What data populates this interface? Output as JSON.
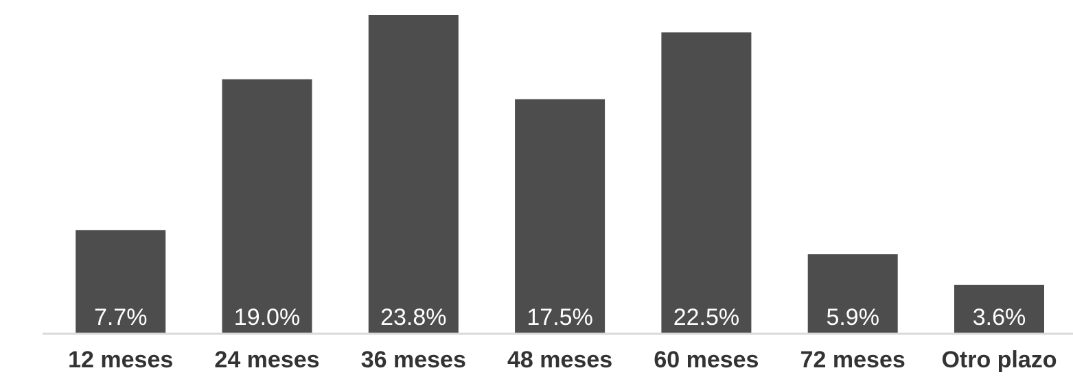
{
  "chart_data": {
    "type": "bar",
    "categories": [
      "12 meses",
      "24 meses",
      "36 meses",
      "48 meses",
      "60 meses",
      "72 meses",
      "Otro plazo"
    ],
    "values": [
      7.7,
      19.0,
      23.8,
      17.5,
      22.5,
      5.9,
      3.6
    ],
    "data_labels": [
      "7.7%",
      "19.0%",
      "23.8%",
      "17.5%",
      "22.5%",
      "5.9%",
      "3.6%"
    ],
    "title": "",
    "xlabel": "",
    "ylabel": "",
    "unit": "%",
    "ylim": [
      0,
      23.8
    ],
    "grid": false,
    "legend": "none",
    "bar_color": "#4d4d4d",
    "axis_color": "#d9d9d9",
    "label_color": "#ffffff",
    "category_label_color": "#333333"
  }
}
